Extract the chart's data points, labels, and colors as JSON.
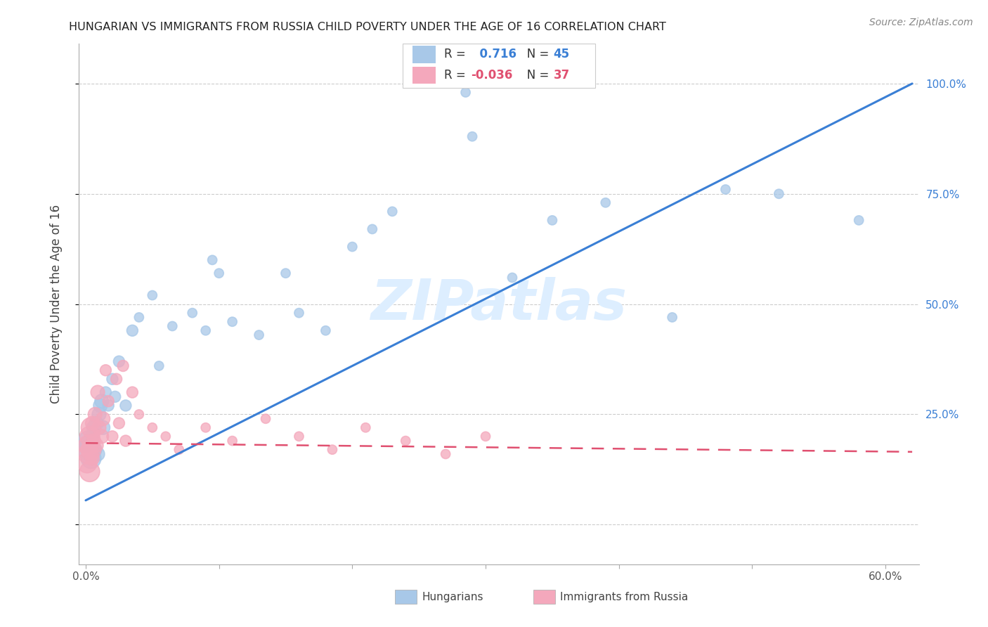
{
  "title": "HUNGARIAN VS IMMIGRANTS FROM RUSSIA CHILD POVERTY UNDER THE AGE OF 16 CORRELATION CHART",
  "source": "Source: ZipAtlas.com",
  "ylabel": "Child Poverty Under the Age of 16",
  "xlim": [
    -0.005,
    0.625
  ],
  "ylim": [
    -0.09,
    1.09
  ],
  "hungarian_color": "#a8c8e8",
  "russian_color": "#f4a8bc",
  "hungarian_line_color": "#3a7fd5",
  "russian_line_color": "#e05070",
  "R_hungarian": 0.716,
  "N_hungarian": 45,
  "R_russian": -0.036,
  "N_russian": 37,
  "watermark": "ZIPatlas",
  "line_h_x0": 0.0,
  "line_h_y0": 0.055,
  "line_h_x1": 0.62,
  "line_h_y1": 1.0,
  "line_r_x0": 0.0,
  "line_r_y0": 0.185,
  "line_r_x1": 0.62,
  "line_r_y1": 0.165,
  "hungarian_x": [
    0.001,
    0.002,
    0.003,
    0.004,
    0.005,
    0.006,
    0.007,
    0.008,
    0.009,
    0.01,
    0.011,
    0.012,
    0.013,
    0.015,
    0.017,
    0.02,
    0.022,
    0.025,
    0.03,
    0.035,
    0.04,
    0.05,
    0.055,
    0.065,
    0.08,
    0.09,
    0.095,
    0.1,
    0.11,
    0.13,
    0.15,
    0.16,
    0.18,
    0.2,
    0.215,
    0.23,
    0.285,
    0.29,
    0.32,
    0.35,
    0.39,
    0.44,
    0.48,
    0.52,
    0.58
  ],
  "hungarian_y": [
    0.17,
    0.19,
    0.18,
    0.15,
    0.2,
    0.22,
    0.17,
    0.23,
    0.16,
    0.25,
    0.27,
    0.28,
    0.22,
    0.3,
    0.27,
    0.33,
    0.29,
    0.37,
    0.27,
    0.44,
    0.47,
    0.52,
    0.36,
    0.45,
    0.48,
    0.44,
    0.6,
    0.57,
    0.46,
    0.43,
    0.57,
    0.48,
    0.44,
    0.63,
    0.67,
    0.71,
    0.98,
    0.88,
    0.56,
    0.69,
    0.73,
    0.47,
    0.76,
    0.75,
    0.69
  ],
  "russian_x": [
    0.001,
    0.002,
    0.002,
    0.003,
    0.003,
    0.004,
    0.004,
    0.005,
    0.005,
    0.006,
    0.007,
    0.008,
    0.009,
    0.01,
    0.012,
    0.013,
    0.015,
    0.017,
    0.02,
    0.023,
    0.025,
    0.028,
    0.03,
    0.035,
    0.04,
    0.05,
    0.06,
    0.07,
    0.09,
    0.11,
    0.135,
    0.16,
    0.185,
    0.21,
    0.24,
    0.27,
    0.3
  ],
  "russian_y": [
    0.14,
    0.16,
    0.18,
    0.12,
    0.2,
    0.17,
    0.22,
    0.15,
    0.23,
    0.19,
    0.25,
    0.18,
    0.3,
    0.22,
    0.2,
    0.24,
    0.35,
    0.28,
    0.2,
    0.33,
    0.23,
    0.36,
    0.19,
    0.3,
    0.25,
    0.22,
    0.2,
    0.17,
    0.22,
    0.19,
    0.24,
    0.2,
    0.17,
    0.22,
    0.19,
    0.16,
    0.2
  ]
}
